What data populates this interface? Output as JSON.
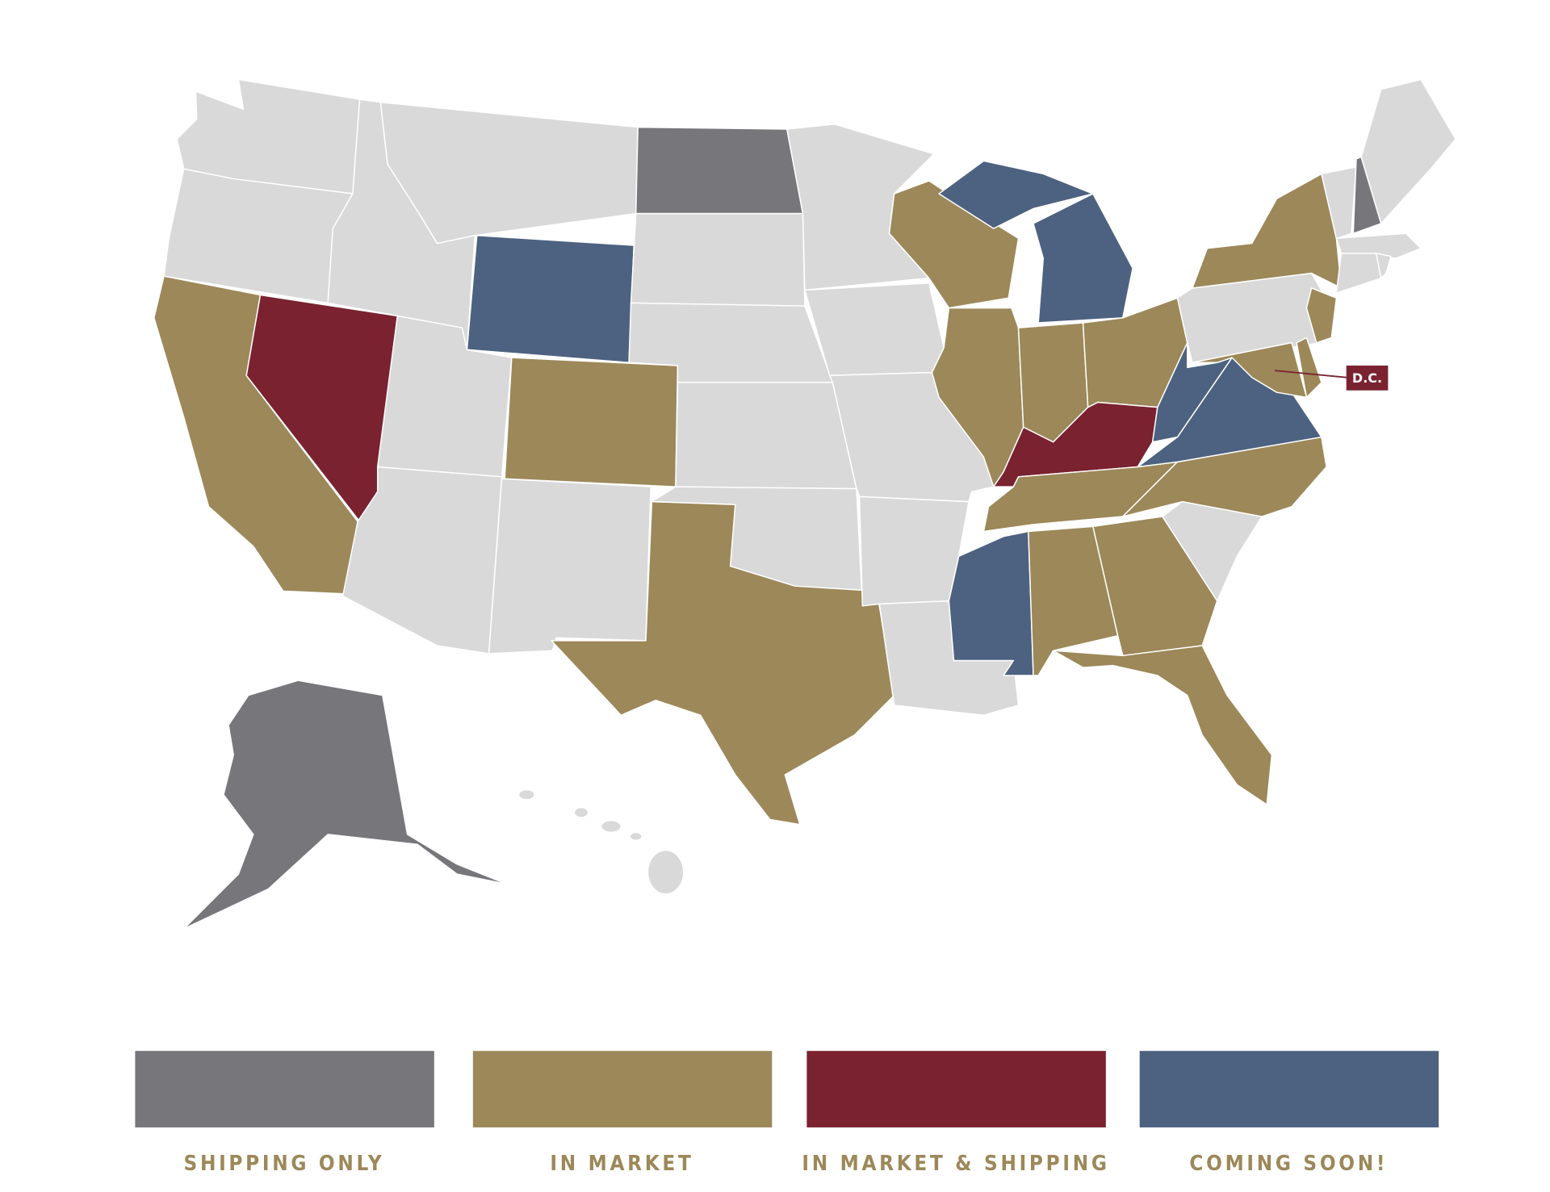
{
  "map": {
    "callout": "D.C.",
    "legend": [
      {
        "label": "SHIPPING ONLY"
      },
      {
        "label": "IN MARKET"
      },
      {
        "label": "IN MARKET & SHIPPING"
      },
      {
        "label": "COMING SOON!"
      }
    ]
  }
}
